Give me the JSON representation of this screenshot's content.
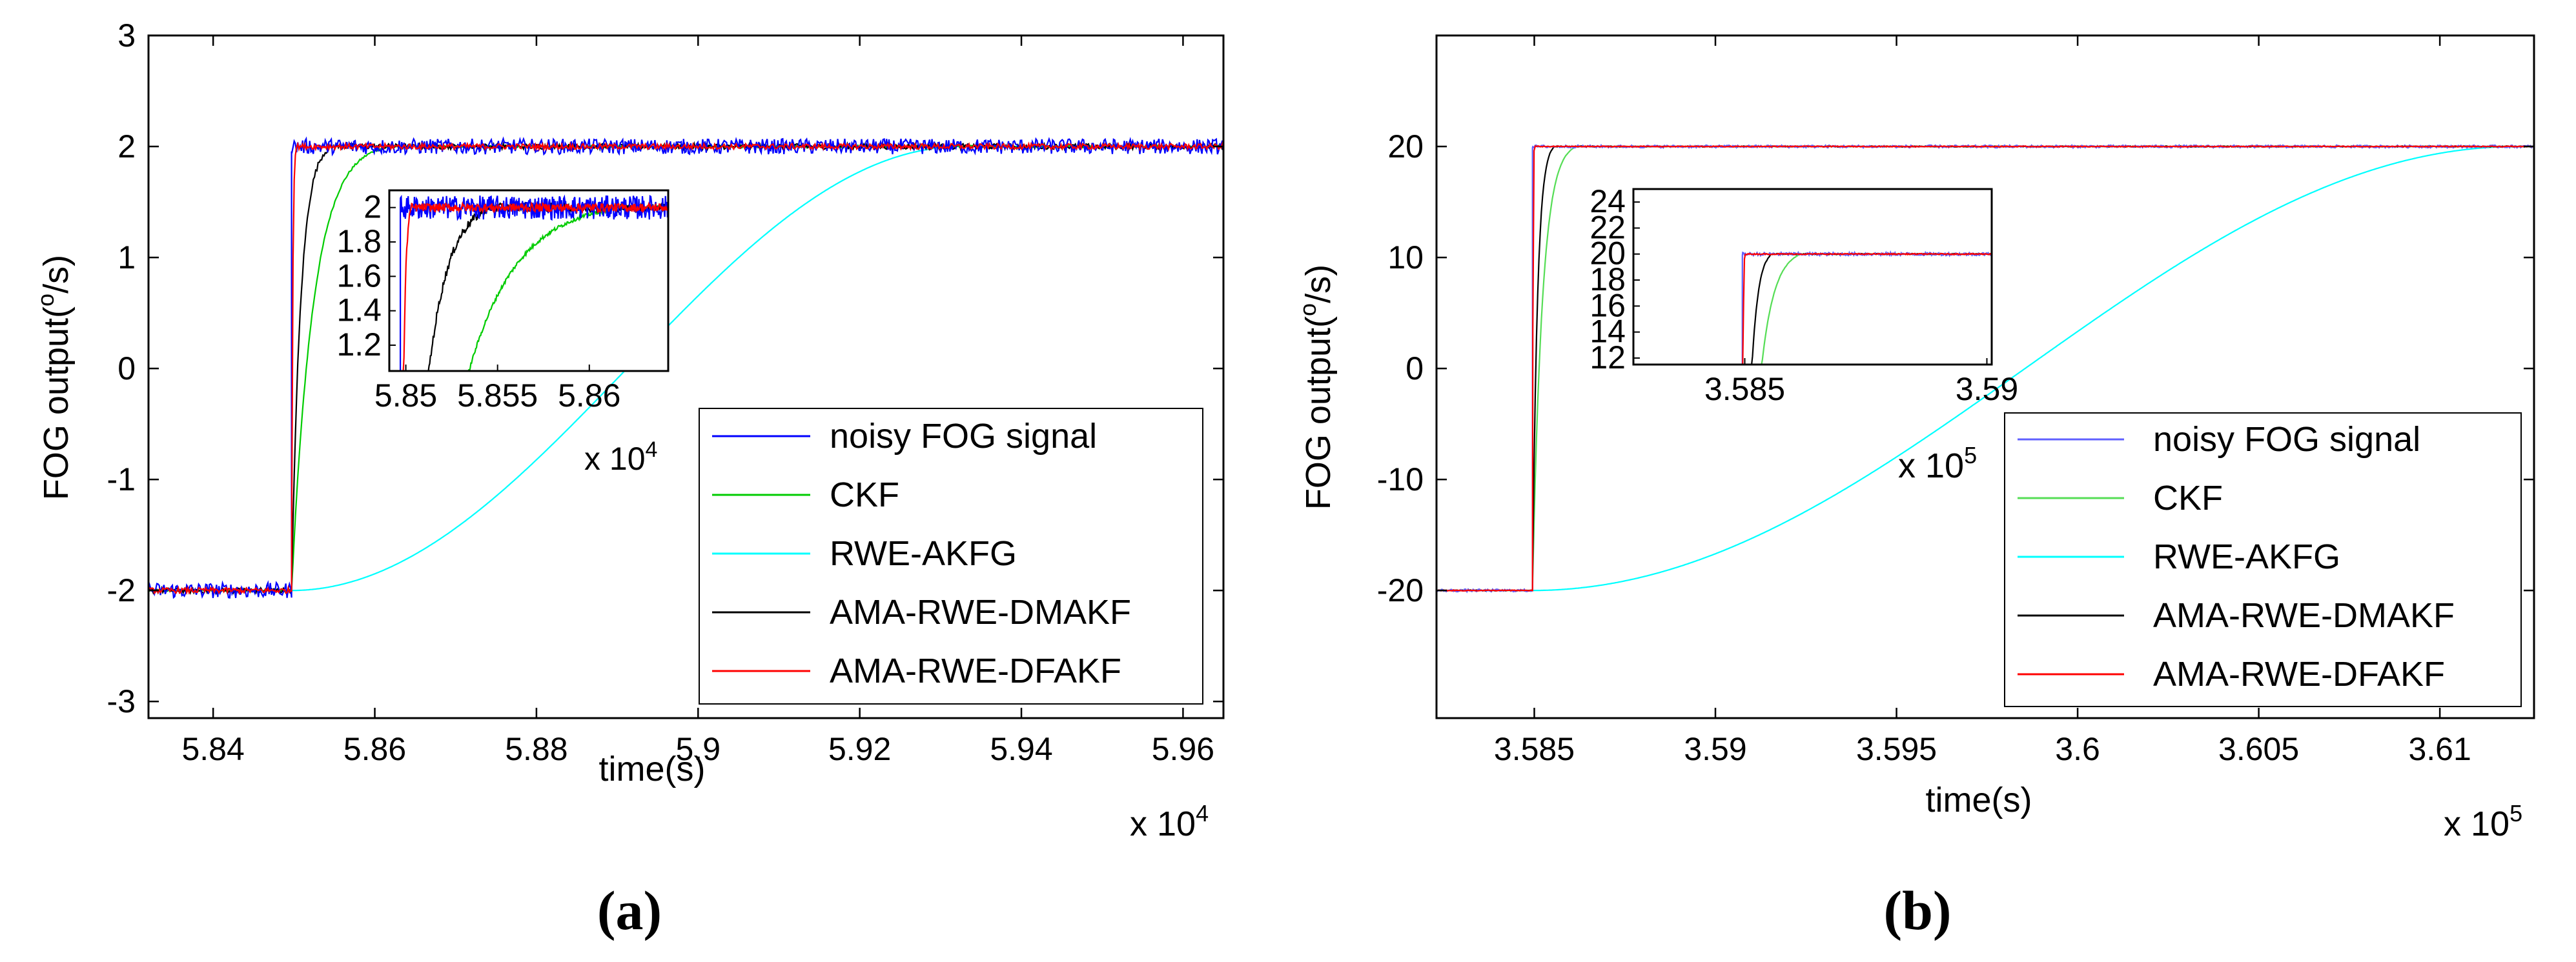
{
  "chart_data": [
    {
      "type": "line",
      "caption_open": "(",
      "caption_letter": "a",
      "caption_close": ")",
      "ylabel_prefix": "FOG output(",
      "ylabel_sup": "o",
      "ylabel_suffix": "/s)",
      "xlabel": "time(s)",
      "x_multiplier_prefix": "x 10",
      "x_multiplier_exp": "4",
      "xlim": [
        5.832,
        5.965
      ],
      "ylim": [
        -3.15,
        3.0
      ],
      "xticks": [
        5.84,
        5.86,
        5.88,
        5.9,
        5.92,
        5.94,
        5.96
      ],
      "xtick_labels": [
        "5.84",
        "5.86",
        "5.88",
        "5.9",
        "5.92",
        "5.94",
        "5.96"
      ],
      "yticks": [
        -3,
        -2,
        -1,
        0,
        1,
        2,
        3
      ],
      "ytick_labels": [
        "-3",
        "-2",
        "-1",
        "0",
        "1",
        "2",
        "3"
      ],
      "step_time": 5.8497,
      "initial_value": -2,
      "final_value": 2,
      "noise_amplitude": 0.07,
      "series": [
        {
          "name": "noisy FOG signal",
          "color": "#0000ff",
          "settle_duration": 0.0
        },
        {
          "name": "CKF",
          "color": "#00cc00",
          "settle_duration": 0.012
        },
        {
          "name": "RWE-AKFG",
          "color": "#00ffff",
          "settle_duration": 0.083
        },
        {
          "name": "AMA-RWE-DMAKF",
          "color": "#000000",
          "settle_duration": 0.005
        },
        {
          "name": "AMA-RWE-DFAKF",
          "color": "#ff0000",
          "settle_duration": 0.0006
        }
      ],
      "legend_position": "bottom-right",
      "inset": {
        "xlim": [
          5.8491,
          5.8643
        ],
        "ylim": [
          1.05,
          2.1
        ],
        "xticks": [
          5.85,
          5.855,
          5.86
        ],
        "xtick_labels": [
          "5.85",
          "5.855",
          "5.86"
        ],
        "yticks": [
          1.2,
          1.4,
          1.6,
          1.8,
          2.0
        ],
        "ytick_labels": [
          "1.2",
          "1.4",
          "1.6",
          "1.8",
          "2"
        ],
        "x_multiplier_prefix": "x 10",
        "x_multiplier_exp": "4"
      }
    },
    {
      "type": "line",
      "caption_open": "(",
      "caption_letter": "b",
      "caption_close": ")",
      "ylabel_prefix": "FOG output(",
      "ylabel_sup": "o",
      "ylabel_suffix": "/s)",
      "xlabel": "time(s)",
      "x_multiplier_prefix": "x 10",
      "x_multiplier_exp": "5",
      "xlim": [
        3.5823,
        3.6126
      ],
      "ylim": [
        -31.5,
        30.0
      ],
      "xticks": [
        3.585,
        3.59,
        3.595,
        3.6,
        3.605,
        3.61
      ],
      "xtick_labels": [
        "3.585",
        "3.59",
        "3.595",
        "3.6",
        "3.605",
        "3.61"
      ],
      "yticks": [
        -20,
        -10,
        0,
        10,
        20
      ],
      "ytick_labels": [
        "-20",
        "-10",
        "0",
        "10",
        "20"
      ],
      "step_time": 3.58495,
      "initial_value": -20,
      "final_value": 20,
      "noise_amplitude": 0.12,
      "series": [
        {
          "name": "noisy FOG signal",
          "color": "#6060ff",
          "settle_duration": 0.0
        },
        {
          "name": "CKF",
          "color": "#55dd55",
          "settle_duration": 0.0012
        },
        {
          "name": "RWE-AKFG",
          "color": "#00ffff",
          "settle_duration": 0.0272
        },
        {
          "name": "AMA-RWE-DMAKF",
          "color": "#000000",
          "settle_duration": 0.0006
        },
        {
          "name": "AMA-RWE-DFAKF",
          "color": "#ff0000",
          "settle_duration": 5e-05
        }
      ],
      "legend_position": "bottom-right",
      "inset": {
        "xlim": [
          3.5827,
          3.5901
        ],
        "ylim": [
          11.5,
          25.0
        ],
        "xticks": [
          3.585,
          3.59
        ],
        "xtick_labels": [
          "3.585",
          "3.59"
        ],
        "yticks": [
          12,
          14,
          16,
          18,
          20,
          22,
          24
        ],
        "ytick_labels": [
          "12",
          "14",
          "16",
          "18",
          "20",
          "22",
          "24"
        ],
        "x_multiplier_prefix": "x 10",
        "x_multiplier_exp": "5"
      }
    }
  ]
}
